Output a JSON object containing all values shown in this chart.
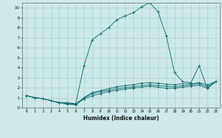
{
  "xlabel": "Humidex (Indice chaleur)",
  "ylabel": "",
  "bg_color": "#cde8e8",
  "line_color": "#1a7070",
  "xlim": [
    -0.5,
    23.5
  ],
  "ylim": [
    0,
    10.5
  ],
  "xticks": [
    0,
    1,
    2,
    3,
    4,
    5,
    6,
    7,
    8,
    9,
    10,
    11,
    12,
    13,
    14,
    15,
    16,
    17,
    18,
    19,
    20,
    21,
    22,
    23
  ],
  "yticks": [
    0,
    1,
    2,
    3,
    4,
    5,
    6,
    7,
    8,
    9,
    10
  ],
  "lines": [
    {
      "x": [
        0,
        1,
        2,
        3,
        4,
        5,
        6,
        7,
        8,
        9,
        10,
        11,
        12,
        13,
        14,
        15,
        16,
        17,
        18,
        19,
        20,
        21,
        22,
        23
      ],
      "y": [
        1.2,
        1.0,
        0.9,
        0.7,
        0.5,
        0.5,
        0.4,
        4.2,
        6.8,
        7.4,
        8.0,
        8.8,
        9.2,
        9.5,
        10.1,
        10.5,
        9.6,
        7.2,
        3.5,
        2.6,
        2.5,
        4.2,
        1.9,
        2.6
      ]
    },
    {
      "x": [
        0,
        1,
        2,
        3,
        4,
        5,
        6,
        7,
        8,
        9,
        10,
        11,
        12,
        13,
        14,
        15,
        16,
        17,
        18,
        19,
        20,
        21,
        22,
        23
      ],
      "y": [
        1.2,
        1.0,
        0.9,
        0.7,
        0.5,
        0.4,
        0.35,
        1.0,
        1.5,
        1.7,
        1.9,
        2.1,
        2.2,
        2.3,
        2.45,
        2.5,
        2.45,
        2.35,
        2.3,
        2.4,
        2.4,
        2.5,
        2.3,
        2.6
      ]
    },
    {
      "x": [
        0,
        1,
        2,
        3,
        4,
        5,
        6,
        7,
        8,
        9,
        10,
        11,
        12,
        13,
        14,
        15,
        16,
        17,
        18,
        19,
        20,
        21,
        22,
        23
      ],
      "y": [
        1.2,
        1.0,
        0.9,
        0.7,
        0.5,
        0.4,
        0.35,
        0.95,
        1.4,
        1.6,
        1.75,
        1.9,
        2.0,
        2.1,
        2.2,
        2.3,
        2.2,
        2.15,
        2.1,
        2.2,
        2.3,
        2.4,
        2.1,
        2.6
      ]
    },
    {
      "x": [
        0,
        1,
        2,
        3,
        4,
        5,
        6,
        7,
        8,
        9,
        10,
        11,
        12,
        13,
        14,
        15,
        16,
        17,
        18,
        19,
        20,
        21,
        22,
        23
      ],
      "y": [
        1.2,
        1.0,
        0.9,
        0.7,
        0.5,
        0.35,
        0.3,
        0.85,
        1.2,
        1.4,
        1.6,
        1.75,
        1.85,
        1.95,
        2.05,
        2.15,
        2.05,
        1.95,
        1.95,
        2.05,
        2.15,
        2.25,
        1.95,
        2.6
      ]
    }
  ]
}
